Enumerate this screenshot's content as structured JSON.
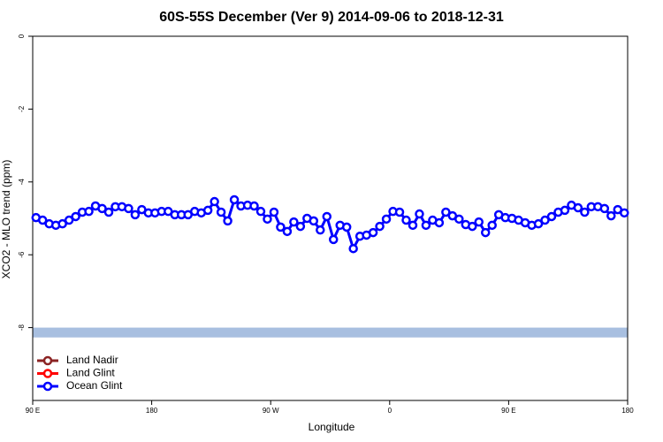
{
  "chart_data": {
    "type": "line",
    "title": "60S-55S December (Ver 9)   2014-09-06 to 2018-12-31",
    "xlabel": "Longitude",
    "ylabel": "XCO2 - MLO trend (ppm)",
    "xlim": [
      90,
      540
    ],
    "ylim": [
      -10,
      0
    ],
    "xticks": [
      {
        "value": 90,
        "label": "90 E"
      },
      {
        "value": 180,
        "label": "180"
      },
      {
        "value": 270,
        "label": "90 W"
      },
      {
        "value": 360,
        "label": "0"
      },
      {
        "value": 450,
        "label": "90 E"
      },
      {
        "value": 540,
        "label": "180"
      }
    ],
    "yticks": [
      0,
      -2,
      -4,
      -6,
      -8
    ],
    "legend_position": "bottom-left",
    "reference_band": {
      "range": [
        -8.0,
        -8.27
      ],
      "color": "#a8bfe0"
    },
    "x": [
      92.5,
      97.5,
      102.5,
      107.5,
      112.5,
      117.5,
      122.5,
      127.5,
      132.5,
      137.5,
      142.5,
      147.5,
      152.5,
      157.5,
      162.5,
      167.5,
      172.5,
      177.5,
      182.5,
      187.5,
      192.5,
      197.5,
      202.5,
      207.5,
      212.5,
      217.5,
      222.5,
      227.5,
      232.5,
      237.5,
      242.5,
      247.5,
      252.5,
      257.5,
      262.5,
      267.5,
      272.5,
      277.5,
      282.5,
      287.5,
      292.5,
      297.5,
      302.5,
      307.5,
      312.5,
      317.5,
      322.5,
      327.5,
      332.5,
      337.5,
      342.5,
      347.5,
      352.5,
      357.5,
      362.5,
      367.5,
      372.5,
      377.5,
      382.5,
      387.5,
      392.5,
      397.5,
      402.5,
      407.5,
      412.5,
      417.5,
      422.5,
      427.5,
      432.5,
      437.5,
      442.5,
      447.5,
      452.5,
      457.5,
      462.5,
      467.5,
      472.5,
      477.5,
      482.5,
      487.5,
      492.5,
      497.5,
      502.5,
      507.5,
      512.5,
      517.5,
      522.5,
      527.5,
      532.5,
      537.5
    ],
    "series": [
      {
        "name": "Land Nadir",
        "color": "#8b2323",
        "values": [
          null,
          null,
          null,
          null,
          null,
          null,
          null,
          null,
          null,
          null,
          null,
          null,
          null,
          null,
          null,
          null,
          null,
          null,
          null,
          null,
          null,
          null,
          null,
          null,
          null,
          null,
          null,
          null,
          null,
          null,
          null,
          null,
          null,
          null,
          null,
          null,
          null,
          null,
          null,
          null,
          null,
          null,
          null,
          null,
          null,
          null,
          null,
          null,
          null,
          null,
          null,
          null,
          null,
          null,
          null,
          null,
          null,
          null,
          null,
          null,
          null,
          null,
          null,
          null,
          null,
          null,
          null,
          null,
          null,
          null,
          null,
          null,
          null,
          null,
          null,
          null,
          null,
          null,
          null,
          null,
          null,
          null,
          null,
          null,
          null,
          null,
          null,
          null,
          null,
          null
        ]
      },
      {
        "name": "Land Glint",
        "color": "#ff0000",
        "values": [
          null,
          null,
          null,
          null,
          null,
          null,
          null,
          null,
          null,
          null,
          null,
          null,
          null,
          null,
          null,
          null,
          null,
          null,
          null,
          null,
          null,
          null,
          null,
          null,
          null,
          null,
          null,
          null,
          null,
          null,
          null,
          null,
          null,
          null,
          null,
          null,
          null,
          null,
          null,
          null,
          null,
          null,
          null,
          null,
          null,
          null,
          null,
          null,
          null,
          null,
          null,
          null,
          null,
          null,
          null,
          null,
          null,
          null,
          null,
          null,
          null,
          null,
          null,
          null,
          null,
          null,
          null,
          null,
          null,
          null,
          null,
          null,
          null,
          null,
          null,
          null,
          null,
          null,
          null,
          null,
          null,
          null,
          null,
          null,
          null,
          null,
          null,
          null,
          null,
          null
        ]
      },
      {
        "name": "Ocean Glint",
        "color": "#0000ff",
        "values": [
          -4.98,
          -5.05,
          -5.15,
          -5.19,
          -5.15,
          -5.05,
          -4.95,
          -4.83,
          -4.81,
          -4.66,
          -4.73,
          -4.83,
          -4.68,
          -4.68,
          -4.73,
          -4.9,
          -4.76,
          -4.85,
          -4.85,
          -4.81,
          -4.81,
          -4.9,
          -4.9,
          -4.9,
          -4.81,
          -4.85,
          -4.78,
          -4.54,
          -4.83,
          -5.07,
          -4.49,
          -4.66,
          -4.64,
          -4.66,
          -4.81,
          -5.02,
          -4.83,
          -5.24,
          -5.36,
          -5.1,
          -5.22,
          -5.0,
          -5.07,
          -5.32,
          -4.95,
          -5.58,
          -5.19,
          -5.24,
          -5.83,
          -5.49,
          -5.46,
          -5.39,
          -5.22,
          -5.02,
          -4.81,
          -4.83,
          -5.05,
          -5.19,
          -4.88,
          -5.19,
          -5.05,
          -5.12,
          -4.83,
          -4.93,
          -5.02,
          -5.17,
          -5.22,
          -5.1,
          -5.39,
          -5.19,
          -4.9,
          -4.98,
          -5.0,
          -5.05,
          -5.12,
          -5.19,
          -5.15,
          -5.05,
          -4.95,
          -4.83,
          -4.78,
          -4.64,
          -4.71,
          -4.83,
          -4.68,
          -4.68,
          -4.73,
          -4.93,
          -4.76,
          -4.85
        ]
      }
    ]
  }
}
